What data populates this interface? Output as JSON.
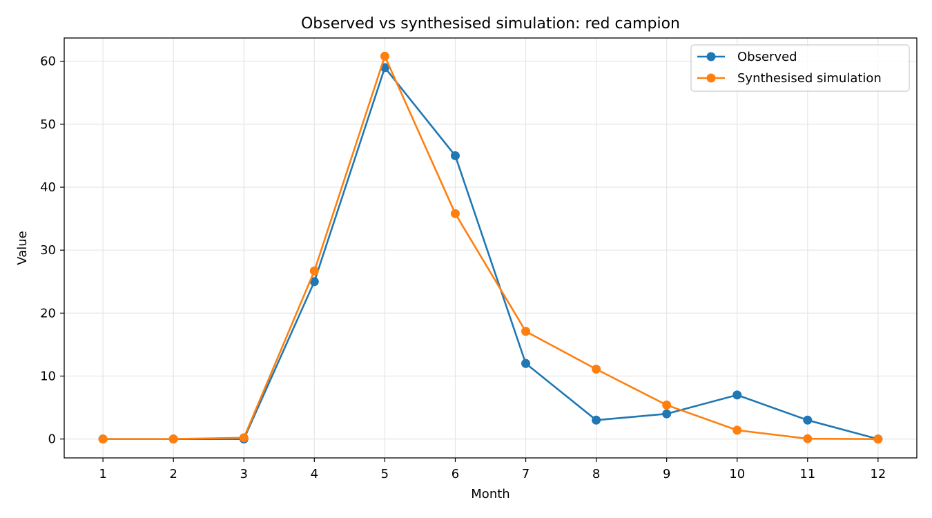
{
  "chart_data": {
    "type": "line",
    "title": "Observed vs synthesised simulation: red campion",
    "xlabel": "Month",
    "ylabel": "Value",
    "x": [
      1,
      2,
      3,
      4,
      5,
      6,
      7,
      8,
      9,
      10,
      11,
      12
    ],
    "xlim": [
      0.45,
      12.55
    ],
    "ylim": [
      -3,
      63.7
    ],
    "yticks": [
      0,
      10,
      20,
      30,
      40,
      50,
      60
    ],
    "grid": true,
    "legend_position": "top-right",
    "series": [
      {
        "name": "Observed",
        "color": "#1f77b4",
        "values": [
          0,
          0,
          0,
          25,
          59,
          45,
          12,
          3,
          4,
          7,
          3,
          0
        ]
      },
      {
        "name": "Synthesised simulation",
        "color": "#ff7f0e",
        "values": [
          0,
          0,
          0.2,
          26.7,
          60.8,
          35.8,
          17.1,
          11.1,
          5.4,
          1.4,
          0.05,
          0
        ]
      }
    ]
  }
}
